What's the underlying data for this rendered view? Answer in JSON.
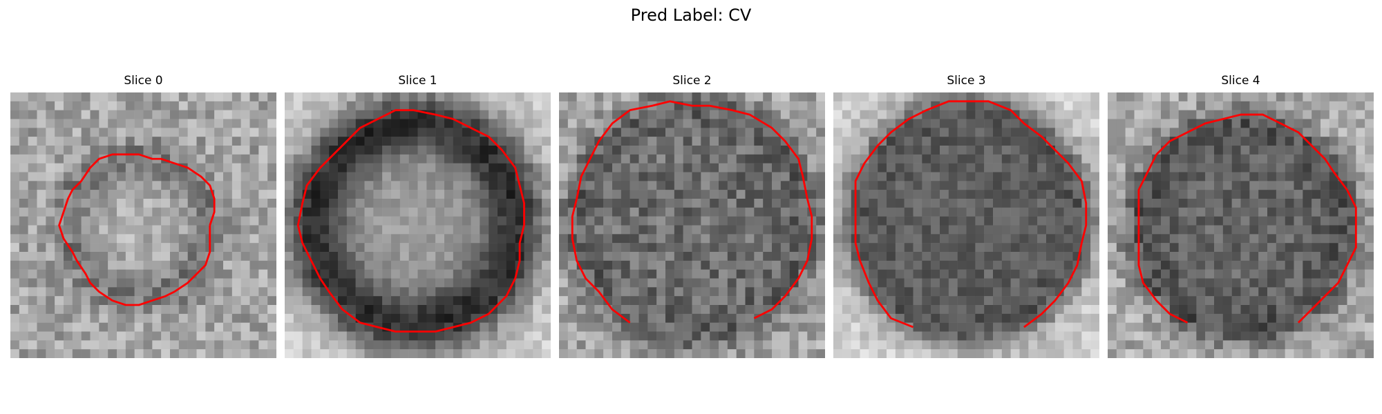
{
  "figure": {
    "title": "Pred Label: CV"
  },
  "panels": [
    {
      "title": "Slice 0"
    },
    {
      "title": "Slice 1"
    },
    {
      "title": "Slice 2"
    },
    {
      "title": "Slice 3"
    },
    {
      "title": "Slice 4"
    }
  ],
  "colors": {
    "contour": "#ff0000",
    "background": "#ffffff"
  }
}
